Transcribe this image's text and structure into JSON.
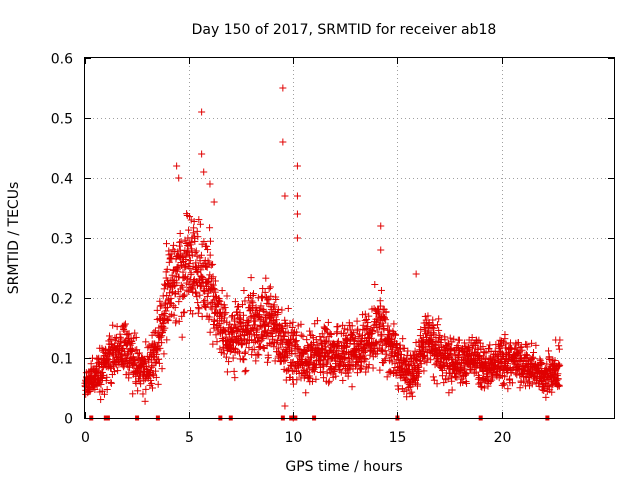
{
  "chart_data": {
    "type": "scatter",
    "title": "Day 150 of 2017, SRMTID for receiver ab18",
    "xlabel": "GPS time / hours",
    "ylabel": "SRMTID / TECUs",
    "xlim": [
      0,
      25.4
    ],
    "ylim": [
      0,
      0.6
    ],
    "xticks": [
      0,
      5,
      10,
      15,
      20
    ],
    "yticks": [
      0,
      0.1,
      0.2,
      0.3,
      0.4,
      0.5,
      0.6
    ],
    "xtick_labels": [
      "0",
      "5",
      "10",
      "15",
      "20"
    ],
    "ytick_labels": [
      "0",
      "0.1",
      "0.2",
      "0.3",
      "0.4",
      "0.5",
      "0.6"
    ],
    "grid": true,
    "marker": "+",
    "color": "#e00000",
    "series": [
      {
        "name": "SRMTID",
        "envelope": [
          {
            "x": 0.0,
            "y": 0.06,
            "spread": 0.02
          },
          {
            "x": 0.5,
            "y": 0.07,
            "spread": 0.025
          },
          {
            "x": 1.0,
            "y": 0.09,
            "spread": 0.035
          },
          {
            "x": 1.5,
            "y": 0.11,
            "spread": 0.045
          },
          {
            "x": 2.0,
            "y": 0.12,
            "spread": 0.05
          },
          {
            "x": 2.5,
            "y": 0.09,
            "spread": 0.035
          },
          {
            "x": 3.0,
            "y": 0.08,
            "spread": 0.03
          },
          {
            "x": 3.5,
            "y": 0.12,
            "spread": 0.045
          },
          {
            "x": 4.0,
            "y": 0.2,
            "spread": 0.07
          },
          {
            "x": 4.5,
            "y": 0.25,
            "spread": 0.08
          },
          {
            "x": 5.0,
            "y": 0.26,
            "spread": 0.08
          },
          {
            "x": 5.5,
            "y": 0.24,
            "spread": 0.07
          },
          {
            "x": 6.0,
            "y": 0.22,
            "spread": 0.07
          },
          {
            "x": 6.5,
            "y": 0.15,
            "spread": 0.05
          },
          {
            "x": 7.0,
            "y": 0.14,
            "spread": 0.045
          },
          {
            "x": 8.0,
            "y": 0.15,
            "spread": 0.05
          },
          {
            "x": 9.0,
            "y": 0.16,
            "spread": 0.05
          },
          {
            "x": 9.6,
            "y": 0.12,
            "spread": 0.05
          },
          {
            "x": 10.5,
            "y": 0.1,
            "spread": 0.035
          },
          {
            "x": 11.5,
            "y": 0.11,
            "spread": 0.04
          },
          {
            "x": 12.5,
            "y": 0.11,
            "spread": 0.04
          },
          {
            "x": 13.5,
            "y": 0.12,
            "spread": 0.04
          },
          {
            "x": 14.2,
            "y": 0.15,
            "spread": 0.05
          },
          {
            "x": 15.0,
            "y": 0.1,
            "spread": 0.035
          },
          {
            "x": 15.6,
            "y": 0.07,
            "spread": 0.03
          },
          {
            "x": 16.5,
            "y": 0.13,
            "spread": 0.045
          },
          {
            "x": 17.5,
            "y": 0.09,
            "spread": 0.03
          },
          {
            "x": 18.5,
            "y": 0.1,
            "spread": 0.035
          },
          {
            "x": 19.5,
            "y": 0.08,
            "spread": 0.03
          },
          {
            "x": 20.0,
            "y": 0.1,
            "spread": 0.035
          },
          {
            "x": 21.0,
            "y": 0.09,
            "spread": 0.03
          },
          {
            "x": 22.0,
            "y": 0.07,
            "spread": 0.025
          },
          {
            "x": 22.8,
            "y": 0.08,
            "spread": 0.03
          }
        ],
        "point_count": 2600,
        "x_range": [
          0.0,
          22.8
        ],
        "outliers": [
          [
            4.4,
            0.42
          ],
          [
            4.5,
            0.4
          ],
          [
            5.1,
            0.33
          ],
          [
            5.6,
            0.51
          ],
          [
            5.6,
            0.44
          ],
          [
            5.7,
            0.41
          ],
          [
            6.0,
            0.39
          ],
          [
            6.2,
            0.36
          ],
          [
            9.5,
            0.55
          ],
          [
            9.5,
            0.46
          ],
          [
            9.6,
            0.37
          ],
          [
            10.2,
            0.42
          ],
          [
            10.2,
            0.37
          ],
          [
            10.2,
            0.34
          ],
          [
            10.2,
            0.3
          ],
          [
            14.2,
            0.32
          ],
          [
            14.2,
            0.28
          ],
          [
            15.9,
            0.24
          ],
          [
            22.8,
            0.13
          ],
          [
            22.6,
            0.13
          ],
          [
            9.6,
            0.02
          ],
          [
            10.0,
            0.0
          ]
        ]
      }
    ],
    "gaps_at_zero": [
      0.3,
      1.0,
      1.1,
      2.5,
      3.5,
      6.5,
      7.0,
      9.5,
      9.9,
      10.0,
      10.1,
      11.0,
      15.0,
      19.0,
      22.2
    ]
  }
}
